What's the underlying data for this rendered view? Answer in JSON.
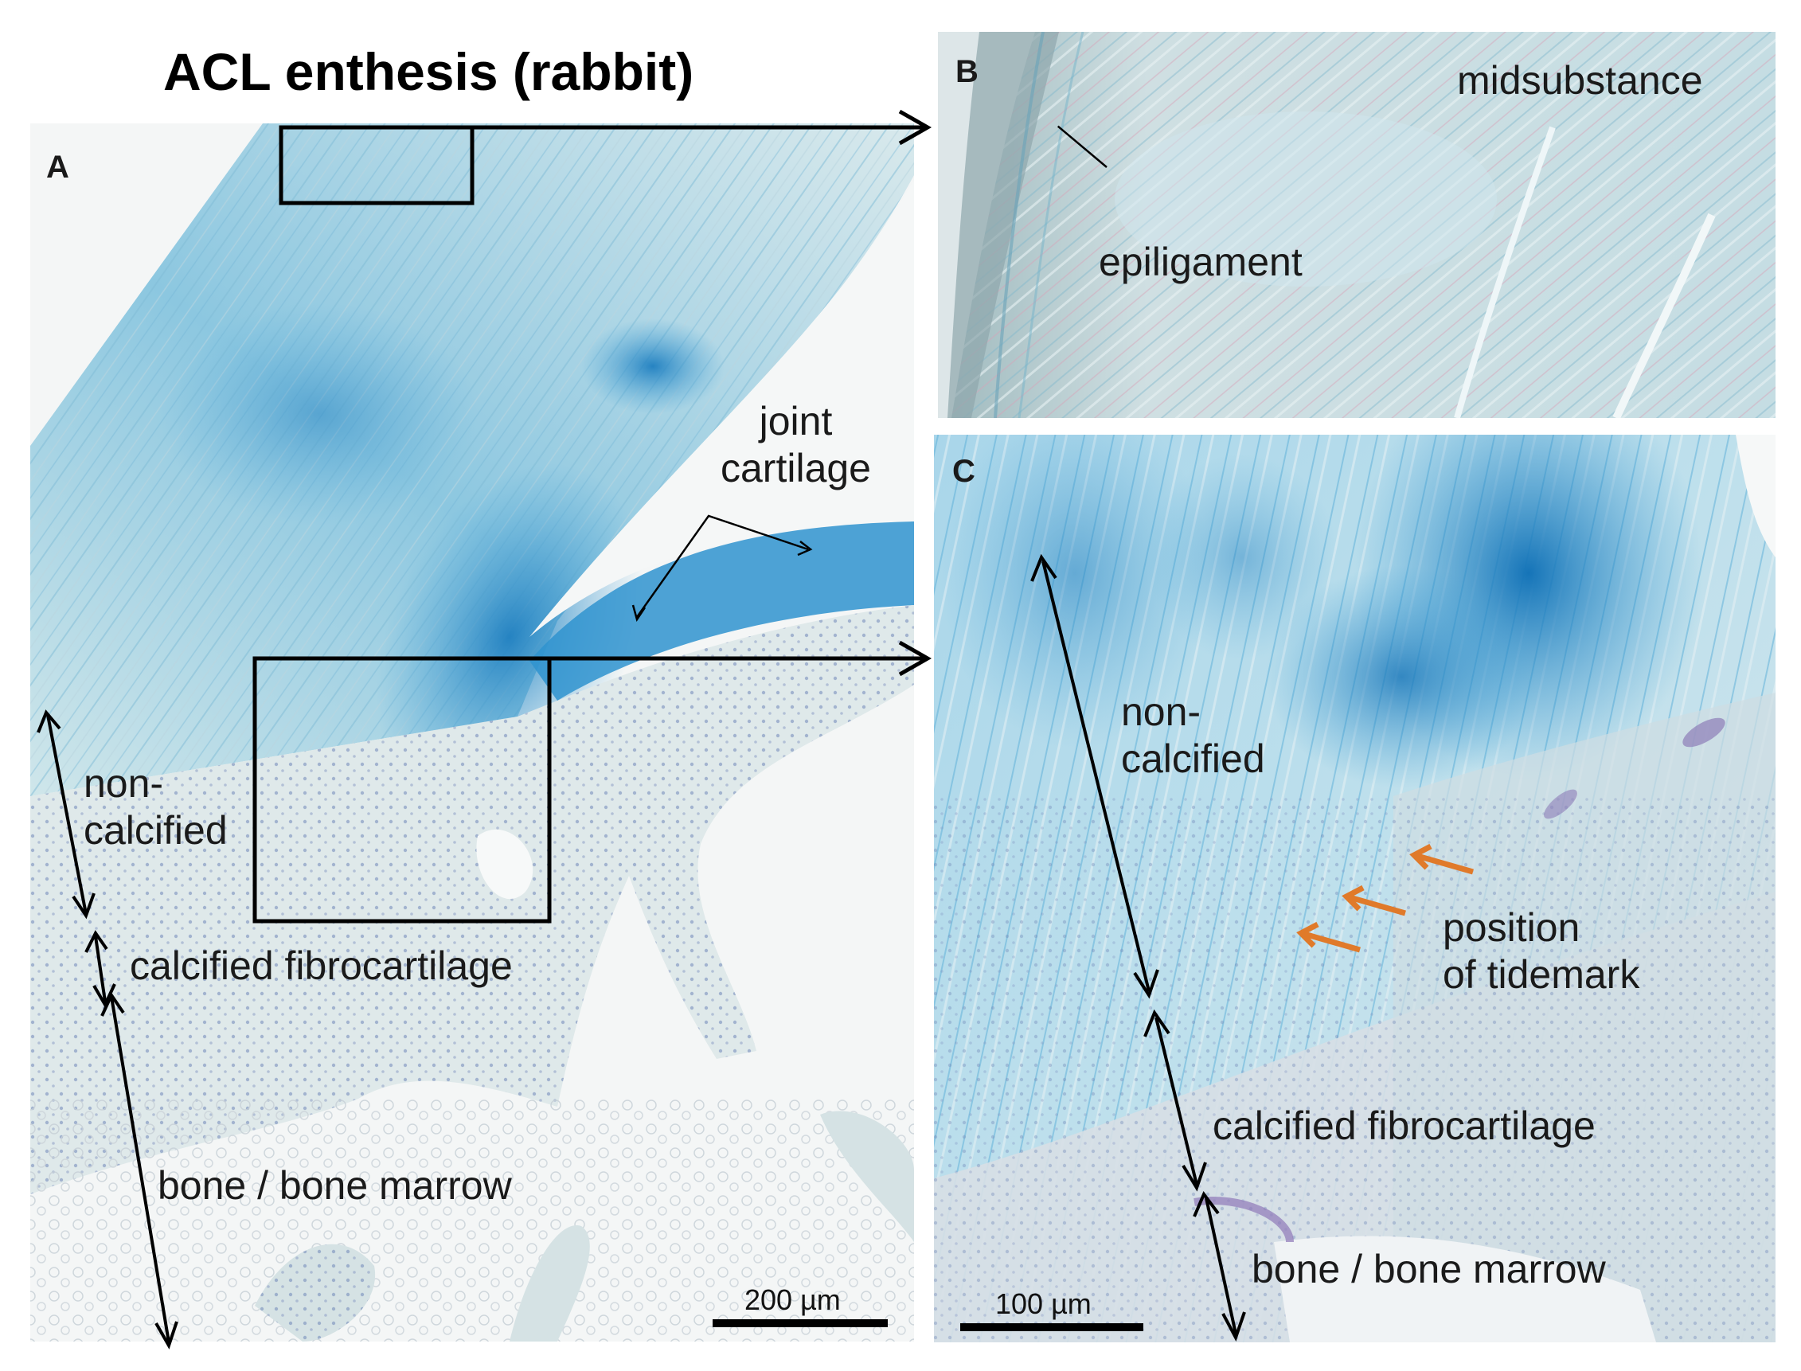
{
  "title": "ACL enthesis (rabbit)",
  "panels": {
    "A": {
      "letter": "A",
      "labels": {
        "joint_cartilage": "joint\ncartilage",
        "non_calcified": "non-\ncalcified",
        "calcified_fibrocartilage": "calcified fibrocartilage",
        "bone_marrow": "bone / bone marrow"
      },
      "scale_bar": "200 µm"
    },
    "B": {
      "letter": "B",
      "labels": {
        "midsubstance": "midsubstance",
        "epiligament": "epiligament"
      }
    },
    "C": {
      "letter": "C",
      "labels": {
        "non_calcified": "non-\ncalcified",
        "tidemark": "position\nof tidemark",
        "calcified_fibrocartilage": "calcified fibrocartilage",
        "bone_marrow": "bone / bone marrow"
      },
      "scale_bar": "100 µm"
    }
  },
  "colors": {
    "stain_blue": "#2a8fc8",
    "tissue_pale": "#dcecee",
    "bone_purple": "#b9a6c8",
    "tidemark_arrow": "#e07a2a",
    "frame": "#000000"
  }
}
